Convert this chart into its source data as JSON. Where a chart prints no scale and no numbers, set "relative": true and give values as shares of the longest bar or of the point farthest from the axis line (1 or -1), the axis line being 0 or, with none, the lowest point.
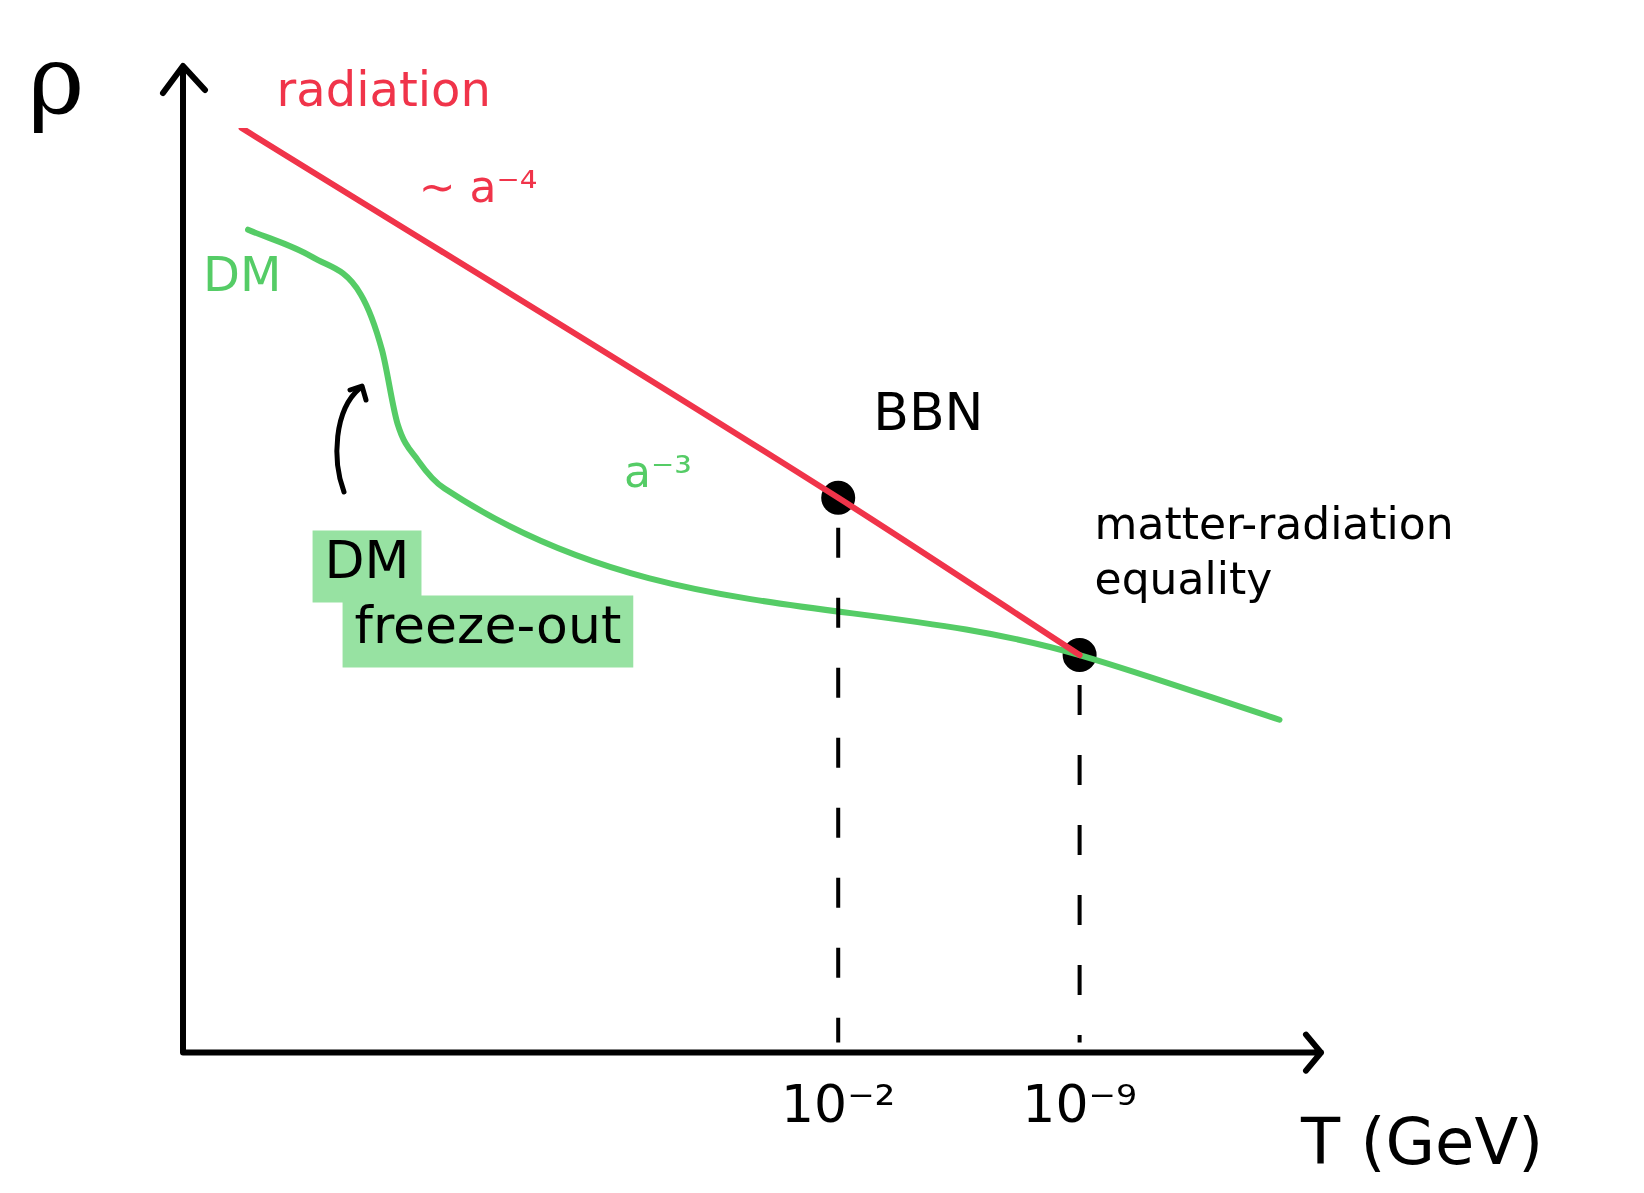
{
  "chart_data": {
    "type": "line",
    "relative": true,
    "log": "x",
    "xlabel": "T (GeV)",
    "ylabel": "ρ",
    "xlim": [
      1e+17,
      1e-16
    ],
    "xticks": [
      {
        "value": 0.01,
        "label": "10⁻²"
      },
      {
        "value": 1e-09,
        "label": "10⁻⁹"
      }
    ],
    "legend": false,
    "series": [
      {
        "name": "radiation",
        "color": "#f0344a",
        "marker": "none",
        "x": [
          2000000000000000.0,
          0.01,
          1e-09
        ],
        "values": [
          1,
          0.6,
          0.43
        ]
      },
      {
        "name": "DM",
        "color": "#55cc66",
        "marker": "none",
        "x": [
          1300000000000000.0,
          17000000000000.0,
          700000000000.0,
          170000000000.0,
          60000000000.0,
          15000000000.0,
          2600000000.0,
          1e-09,
          1.6e-15
        ],
        "values": [
          0.89,
          0.86,
          0.82,
          0.76,
          0.68,
          0.64,
          0.61,
          0.43,
          0.36
        ]
      },
      {
        "type": "scatter",
        "color": "#000000",
        "marker": "circle",
        "x": [
          0.01,
          1e-09
        ],
        "values": [
          0.6,
          0.43
        ]
      }
    ],
    "ref_lines": [
      {
        "axis": "x",
        "value": 0.01,
        "color": "#000000",
        "line_style": "dashed"
      },
      {
        "axis": "x",
        "value": 1e-09,
        "color": "#000000",
        "line_style": "dashed"
      }
    ],
    "annotations": [
      "∼ a⁻⁴",
      "a⁻³",
      {
        "text": "DM freeze-out",
        "x": 2600000000.0,
        "y": 0.61
      },
      {
        "text": "BBN",
        "x": 0.01,
        "y": 0.6
      },
      {
        "text": "matter-radiation equality",
        "x": 1e-09,
        "y": 0.43
      }
    ]
  }
}
